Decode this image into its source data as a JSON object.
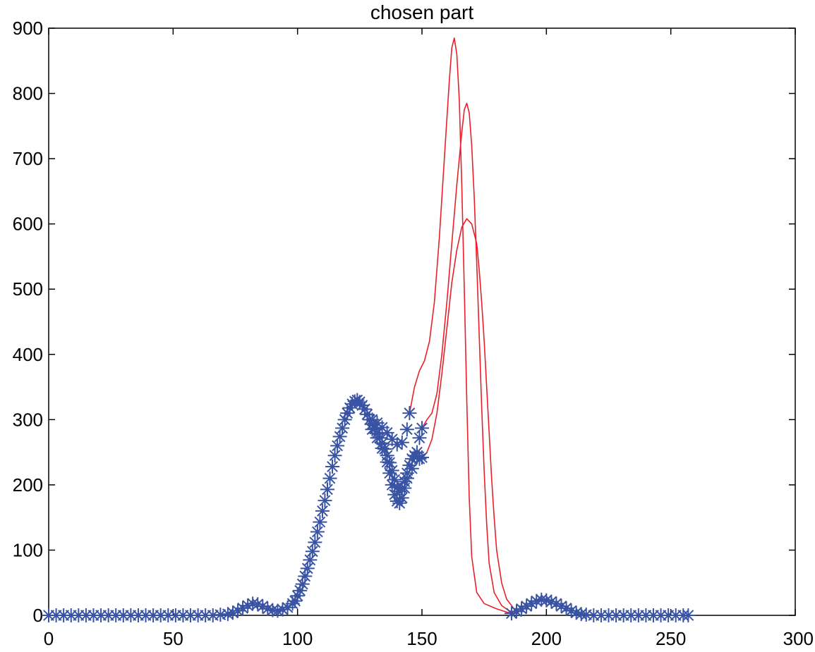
{
  "chart_data": {
    "type": "scatter",
    "title": "chosen part",
    "xlabel": "",
    "ylabel": "",
    "xlim": [
      0,
      300
    ],
    "ylim": [
      0,
      900
    ],
    "x_ticks": [
      0,
      50,
      100,
      150,
      200,
      250,
      300
    ],
    "y_ticks": [
      0,
      100,
      200,
      300,
      400,
      500,
      600,
      700,
      800,
      900
    ],
    "grid": false,
    "legend": "none",
    "colors": {
      "markers": "#3953a4",
      "lines": "#e8202a",
      "axes": "#000000"
    },
    "series": [
      {
        "marker": "asterisk",
        "color": "#3953a4",
        "points": [
          [
            0,
            0
          ],
          [
            3,
            0
          ],
          [
            6,
            0
          ],
          [
            9,
            0
          ],
          [
            12,
            0
          ],
          [
            15,
            0
          ],
          [
            18,
            0
          ],
          [
            21,
            0
          ],
          [
            24,
            0
          ],
          [
            27,
            0
          ],
          [
            30,
            0
          ],
          [
            33,
            0
          ],
          [
            36,
            0
          ],
          [
            39,
            0
          ],
          [
            42,
            0
          ],
          [
            45,
            0
          ],
          [
            48,
            0
          ],
          [
            51,
            0
          ],
          [
            54,
            0
          ],
          [
            57,
            0
          ],
          [
            60,
            0
          ],
          [
            63,
            0
          ],
          [
            66,
            0
          ],
          [
            69,
            1
          ],
          [
            72,
            2
          ],
          [
            74,
            4
          ],
          [
            76,
            7
          ],
          [
            78,
            11
          ],
          [
            80,
            15
          ],
          [
            82,
            18
          ],
          [
            84,
            17
          ],
          [
            86,
            14
          ],
          [
            88,
            10
          ],
          [
            90,
            8
          ],
          [
            92,
            7
          ],
          [
            94,
            9
          ],
          [
            96,
            12
          ],
          [
            98,
            18
          ],
          [
            99,
            22
          ],
          [
            100,
            30
          ],
          [
            101,
            38
          ],
          [
            102,
            48
          ],
          [
            103,
            60
          ],
          [
            104,
            72
          ],
          [
            105,
            85
          ],
          [
            106,
            98
          ],
          [
            107,
            112
          ],
          [
            108,
            128
          ],
          [
            109,
            143
          ],
          [
            110,
            160
          ],
          [
            111,
            176
          ],
          [
            112,
            193
          ],
          [
            113,
            210
          ],
          [
            114,
            228
          ],
          [
            115,
            245
          ],
          [
            116,
            260
          ],
          [
            117,
            274
          ],
          [
            118,
            287
          ],
          [
            119,
            300
          ],
          [
            120,
            310
          ],
          [
            121,
            318
          ],
          [
            122,
            324
          ],
          [
            123,
            328
          ],
          [
            124,
            330
          ],
          [
            125,
            327
          ],
          [
            126,
            322
          ],
          [
            127,
            316
          ],
          [
            128,
            308
          ],
          [
            129,
            300
          ],
          [
            130,
            293
          ],
          [
            131,
            286
          ],
          [
            132,
            279
          ],
          [
            133,
            272
          ],
          [
            134,
            264
          ],
          [
            135,
            255
          ],
          [
            136,
            245
          ],
          [
            137,
            234
          ],
          [
            138,
            222
          ],
          [
            139,
            208
          ],
          [
            140,
            196
          ],
          [
            141,
            190
          ],
          [
            142,
            195
          ],
          [
            143,
            205
          ],
          [
            144,
            218
          ],
          [
            145,
            230
          ],
          [
            146,
            240
          ],
          [
            147,
            245
          ],
          [
            148,
            243
          ],
          [
            149,
            240
          ],
          [
            150,
            242
          ],
          [
            130,
            300
          ],
          [
            132,
            295
          ],
          [
            134,
            288
          ],
          [
            136,
            280
          ],
          [
            138,
            270
          ],
          [
            140,
            262
          ],
          [
            142,
            265
          ],
          [
            144,
            285
          ],
          [
            145,
            310
          ],
          [
            130,
            285
          ],
          [
            132,
            272
          ],
          [
            134,
            256
          ],
          [
            136,
            235
          ],
          [
            137,
            218
          ],
          [
            138,
            200
          ],
          [
            139,
            185
          ],
          [
            140,
            175
          ],
          [
            141,
            172
          ],
          [
            142,
            180
          ],
          [
            143,
            195
          ],
          [
            144,
            210
          ],
          [
            146,
            225
          ],
          [
            148,
            250
          ],
          [
            149,
            272
          ],
          [
            150,
            287
          ],
          [
            186,
            3
          ],
          [
            188,
            6
          ],
          [
            190,
            10
          ],
          [
            192,
            14
          ],
          [
            194,
            18
          ],
          [
            196,
            22
          ],
          [
            198,
            24
          ],
          [
            200,
            23
          ],
          [
            202,
            21
          ],
          [
            204,
            18
          ],
          [
            206,
            14
          ],
          [
            208,
            11
          ],
          [
            210,
            7
          ],
          [
            212,
            4
          ],
          [
            214,
            2
          ],
          [
            216,
            1
          ],
          [
            219,
            0
          ],
          [
            222,
            0
          ],
          [
            225,
            0
          ],
          [
            228,
            0
          ],
          [
            231,
            0
          ],
          [
            234,
            0
          ],
          [
            237,
            0
          ],
          [
            240,
            0
          ],
          [
            243,
            0
          ],
          [
            246,
            0
          ],
          [
            249,
            0
          ],
          [
            252,
            0
          ],
          [
            255,
            0
          ],
          [
            257,
            0
          ]
        ]
      },
      {
        "color": "#e8202a",
        "points": [
          [
            145,
            310
          ],
          [
            147,
            350
          ],
          [
            149,
            375
          ],
          [
            151,
            390
          ],
          [
            153,
            420
          ],
          [
            155,
            480
          ],
          [
            157,
            580
          ],
          [
            159,
            700
          ],
          [
            161,
            820
          ],
          [
            162,
            870
          ],
          [
            163,
            885
          ],
          [
            164,
            860
          ],
          [
            165,
            790
          ],
          [
            166,
            660
          ],
          [
            167,
            500
          ],
          [
            168,
            330
          ],
          [
            169,
            180
          ],
          [
            170,
            90
          ],
          [
            172,
            35
          ],
          [
            175,
            18
          ],
          [
            180,
            10
          ],
          [
            184,
            5
          ],
          [
            186,
            3
          ]
        ]
      },
      {
        "color": "#e8202a",
        "points": [
          [
            150,
            287
          ],
          [
            152,
            300
          ],
          [
            154,
            310
          ],
          [
            156,
            340
          ],
          [
            158,
            400
          ],
          [
            160,
            480
          ],
          [
            162,
            570
          ],
          [
            164,
            660
          ],
          [
            166,
            740
          ],
          [
            167,
            775
          ],
          [
            168,
            785
          ],
          [
            169,
            770
          ],
          [
            170,
            720
          ],
          [
            171,
            640
          ],
          [
            172,
            540
          ],
          [
            173,
            430
          ],
          [
            174,
            320
          ],
          [
            175,
            220
          ],
          [
            176,
            140
          ],
          [
            177,
            80
          ],
          [
            179,
            35
          ],
          [
            182,
            15
          ],
          [
            185,
            7
          ],
          [
            188,
            4
          ]
        ]
      },
      {
        "color": "#e8202a",
        "points": [
          [
            150,
            240
          ],
          [
            152,
            250
          ],
          [
            154,
            270
          ],
          [
            156,
            310
          ],
          [
            158,
            370
          ],
          [
            160,
            440
          ],
          [
            162,
            510
          ],
          [
            164,
            560
          ],
          [
            166,
            595
          ],
          [
            168,
            608
          ],
          [
            170,
            600
          ],
          [
            172,
            570
          ],
          [
            173,
            530
          ],
          [
            174,
            480
          ],
          [
            175,
            420
          ],
          [
            176,
            350
          ],
          [
            177,
            280
          ],
          [
            178,
            210
          ],
          [
            179,
            150
          ],
          [
            180,
            100
          ],
          [
            182,
            50
          ],
          [
            184,
            25
          ],
          [
            187,
            10
          ],
          [
            190,
            5
          ]
        ]
      }
    ]
  }
}
